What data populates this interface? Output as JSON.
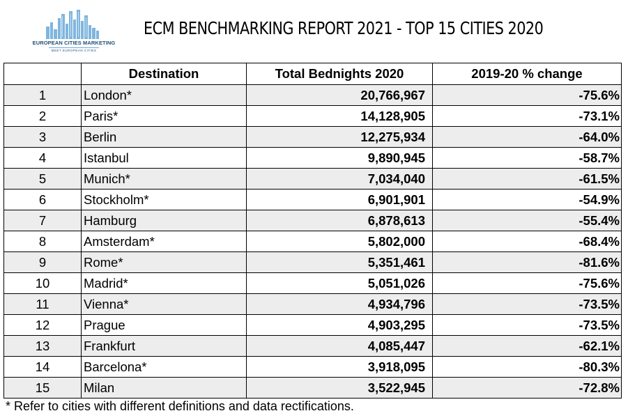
{
  "logo": {
    "brand": "EUROPEAN CITIES MARKETING",
    "tagline": "MEET EUROPEAN CITIES",
    "color": "#6fa8d6"
  },
  "title": "ECM BENCHMARKING REPORT 2021 - TOP 15 CITIES 2020",
  "table": {
    "headers": [
      "",
      "Destination",
      "Total Bednights 2020",
      "2019-20 % change"
    ],
    "rows": [
      {
        "rank": "1",
        "destination": "London*",
        "bednights": "20,766,967",
        "change": "-75.6%"
      },
      {
        "rank": "2",
        "destination": "Paris*",
        "bednights": "14,128,905",
        "change": "-73.1%"
      },
      {
        "rank": "3",
        "destination": "Berlin",
        "bednights": "12,275,934",
        "change": "-64.0%"
      },
      {
        "rank": "4",
        "destination": "Istanbul",
        "bednights": "9,890,945",
        "change": "-58.7%"
      },
      {
        "rank": "5",
        "destination": "Munich*",
        "bednights": "7,034,040",
        "change": "-61.5%"
      },
      {
        "rank": "6",
        "destination": "Stockholm*",
        "bednights": "6,901,901",
        "change": "-54.9%"
      },
      {
        "rank": "7",
        "destination": "Hamburg",
        "bednights": "6,878,613",
        "change": "-55.4%"
      },
      {
        "rank": "8",
        "destination": "Amsterdam*",
        "bednights": "5,802,000",
        "change": "-68.4%"
      },
      {
        "rank": "9",
        "destination": "Rome*",
        "bednights": "5,351,461",
        "change": "-81.6%"
      },
      {
        "rank": "10",
        "destination": "Madrid*",
        "bednights": "5,051,026",
        "change": "-75.6%"
      },
      {
        "rank": "11",
        "destination": "Vienna*",
        "bednights": "4,934,796",
        "change": "-73.5%"
      },
      {
        "rank": "12",
        "destination": "Prague",
        "bednights": "4,903,295",
        "change": "-73.5%"
      },
      {
        "rank": "13",
        "destination": "Frankfurt",
        "bednights": "4,085,447",
        "change": "-62.1%"
      },
      {
        "rank": "14",
        "destination": "Barcelona*",
        "bednights": "3,918,095",
        "change": "-80.3%"
      },
      {
        "rank": "15",
        "destination": "Milan",
        "bednights": "3,522,945",
        "change": "-72.8%"
      }
    ]
  },
  "footnote": "* Refer to cities with different definitions and data rectifications."
}
